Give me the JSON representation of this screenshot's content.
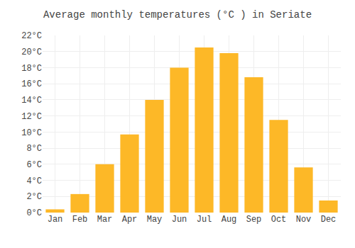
{
  "chart_data": {
    "type": "bar",
    "title": "Average monthly temperatures (°C ) in Seriate",
    "categories": [
      "Jan",
      "Feb",
      "Mar",
      "Apr",
      "May",
      "Jun",
      "Jul",
      "Aug",
      "Sep",
      "Oct",
      "Nov",
      "Dec"
    ],
    "values": [
      0.4,
      2.3,
      6.0,
      9.7,
      14.0,
      18.0,
      20.5,
      19.8,
      16.8,
      11.5,
      5.6,
      1.5
    ],
    "color": "#FDB827",
    "ylim": [
      0,
      22
    ],
    "yticks": [
      {
        "value": 0,
        "label": "0°C"
      },
      {
        "value": 2,
        "label": "2°C"
      },
      {
        "value": 4,
        "label": "4°C"
      },
      {
        "value": 6,
        "label": "6°C"
      },
      {
        "value": 8,
        "label": "8°C"
      },
      {
        "value": 10,
        "label": "10°C"
      },
      {
        "value": 12,
        "label": "12°C"
      },
      {
        "value": 14,
        "label": "14°C"
      },
      {
        "value": 16,
        "label": "16°C"
      },
      {
        "value": 18,
        "label": "18°C"
      },
      {
        "value": 20,
        "label": "20°C"
      },
      {
        "value": 22,
        "label": "22°C"
      }
    ],
    "grid": true
  }
}
